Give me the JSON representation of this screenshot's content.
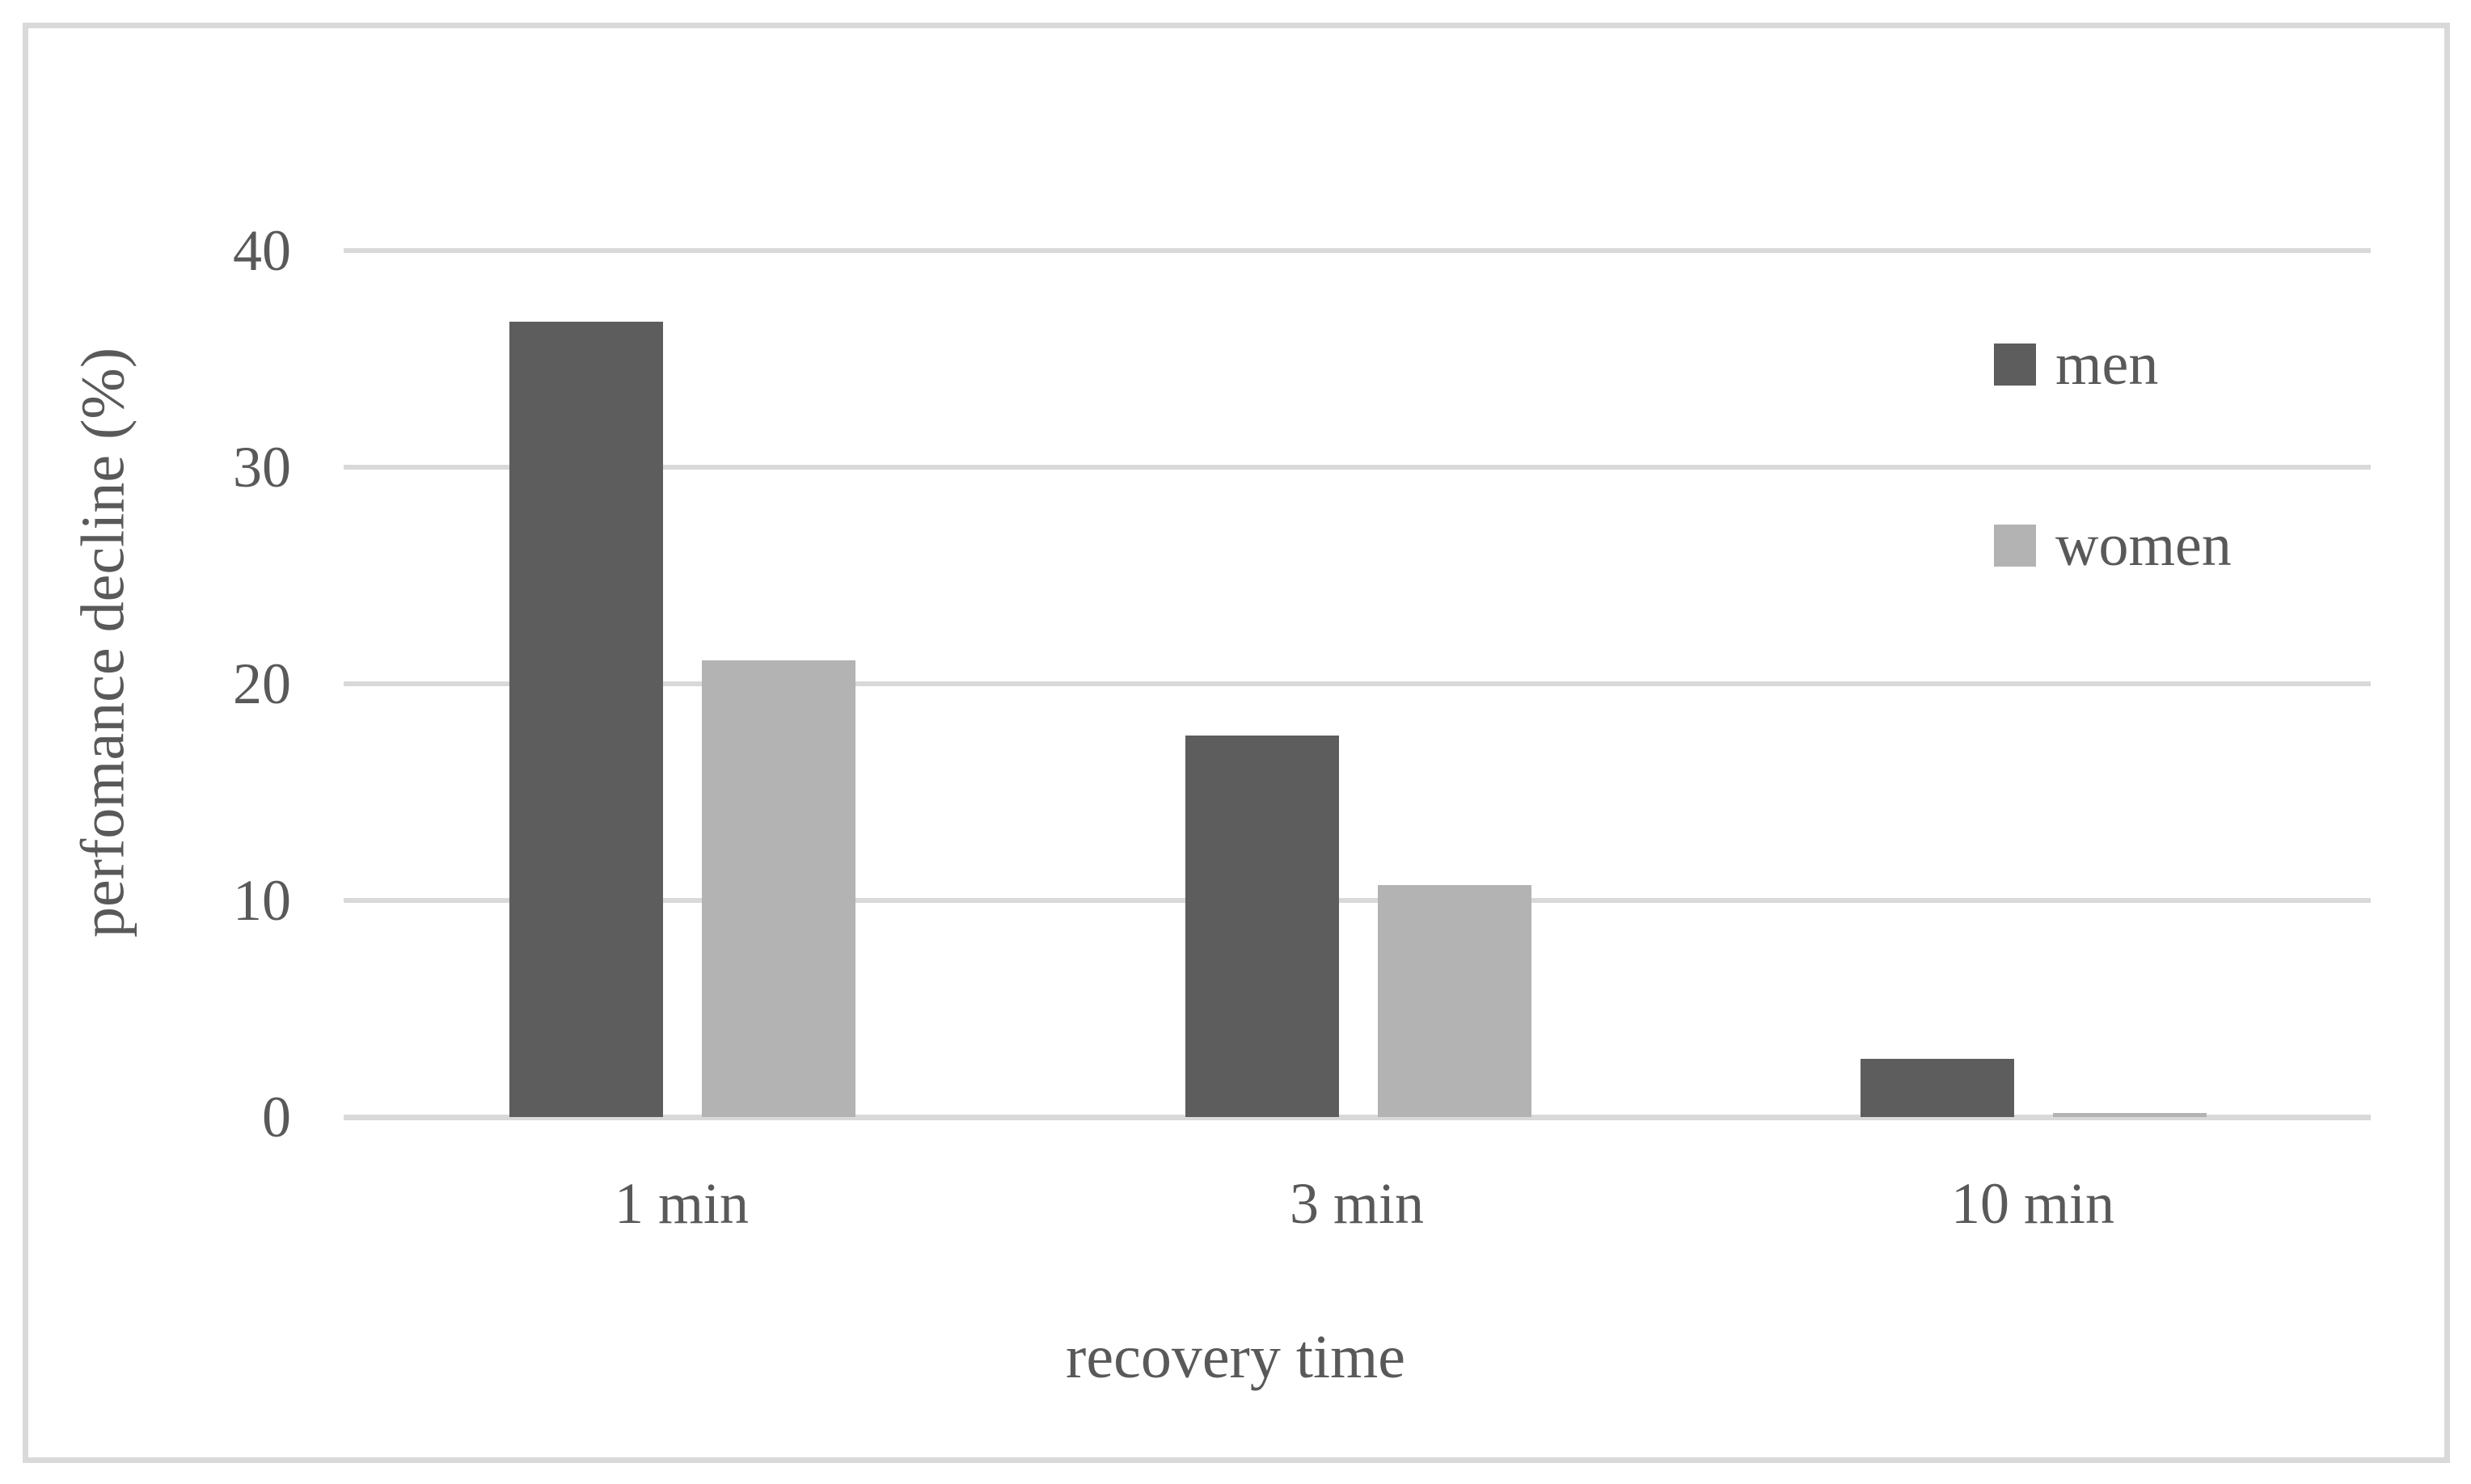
{
  "figure": {
    "background_color": "#ffffff",
    "frame_border_color": "#d9d9d9",
    "text_color": "#595959",
    "gridline_color": "#d9d9d9"
  },
  "legend": {
    "items": [
      {
        "label": "men",
        "swatch_color": "#5d5d5d"
      },
      {
        "label": "women",
        "swatch_color": "#b3b3b3"
      }
    ]
  },
  "chart_data": {
    "type": "bar",
    "title": "",
    "categories": [
      "1 min",
      "3 min",
      "10 min"
    ],
    "series": [
      {
        "name": "men",
        "color": "#5d5d5d",
        "values": [
          36.7,
          17.6,
          2.7
        ]
      },
      {
        "name": "women",
        "color": "#b3b3b3",
        "values": [
          21.1,
          10.7,
          0.2
        ]
      }
    ],
    "xlabel": "recovery time",
    "ylabel": "perfomance decline (%)",
    "ylim": [
      0,
      40
    ],
    "yticks": [
      0,
      10,
      20,
      30,
      40
    ],
    "grid": "horizontal-only",
    "legend_position": "upper-right"
  }
}
